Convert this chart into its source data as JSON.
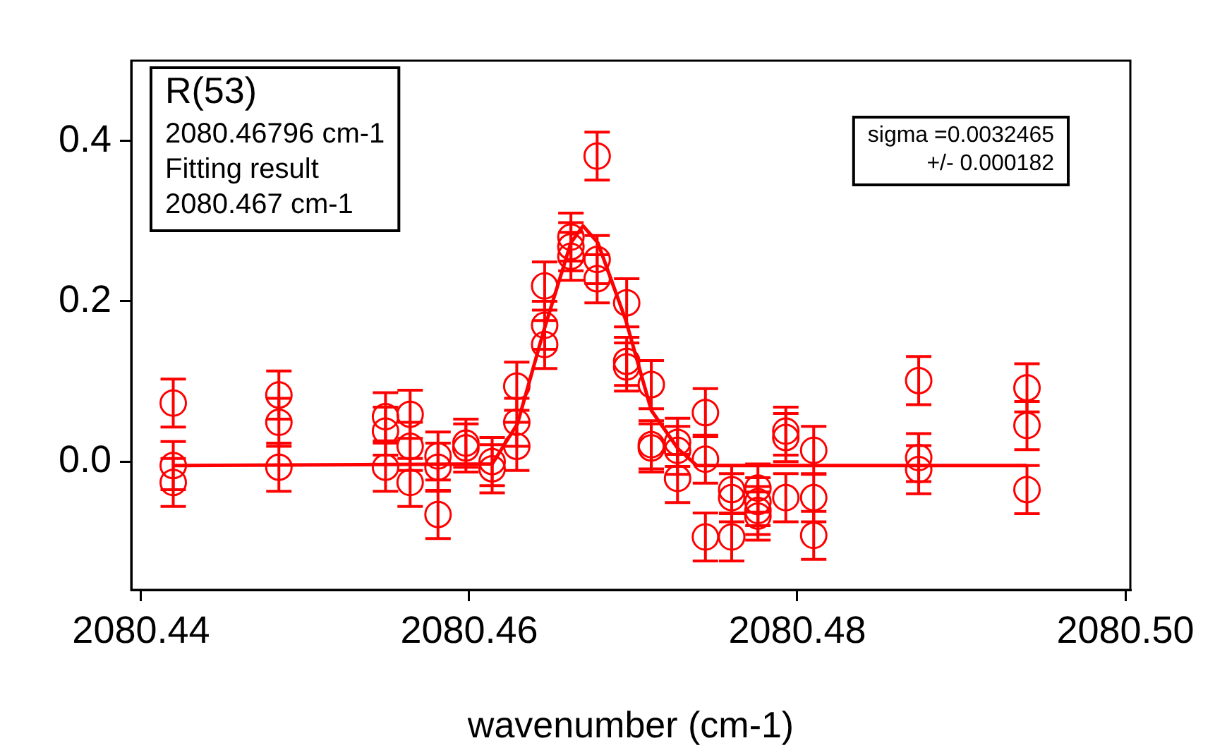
{
  "chart_data": {
    "type": "scatter",
    "xlabel": "wavenumber (cm-1)",
    "xlim": [
      2080.4394,
      2080.5003
    ],
    "xticks": [
      {
        "value": 2080.44,
        "label": "2080.44"
      },
      {
        "value": 2080.46,
        "label": "2080.46"
      },
      {
        "value": 2080.48,
        "label": "2080.48"
      },
      {
        "value": 2080.5,
        "label": "2080.50"
      }
    ],
    "ylim": [
      -0.16,
      0.5
    ],
    "yticks": [
      {
        "value": 0,
        "label": "0.0"
      },
      {
        "value": 0.2,
        "label": "0.2"
      },
      {
        "value": 0.4,
        "label": "0.4"
      }
    ],
    "grid": false,
    "legend": false,
    "marker": "circle",
    "annotations": [
      "R(53)\n2080.46796 cm-1\nFitting result\n2080.467 cm-1",
      "sigma =0.0032465\n+/- 0.000182"
    ],
    "series": [
      {
        "color": "#ff0000",
        "x": [
          2080.44196,
          2080.44196,
          2080.44196,
          2080.4484,
          2080.4484,
          2080.4484,
          2080.4549,
          2080.4549,
          2080.4549,
          2080.4564,
          2080.4564,
          2080.4564,
          2080.4581,
          2080.4581,
          2080.4581,
          2080.4598,
          2080.4598,
          2080.4614,
          2080.4614,
          2080.4629,
          2080.4629,
          2080.4629,
          2080.4646,
          2080.4646,
          2080.4646,
          2080.4662,
          2080.4662,
          2080.4662,
          2080.4678,
          2080.4678,
          2080.4678,
          2080.4696,
          2080.4696,
          2080.4696,
          2080.4711,
          2080.4711,
          2080.4711,
          2080.4727,
          2080.4727,
          2080.4727,
          2080.4744,
          2080.4744,
          2080.4744,
          2080.476,
          2080.476,
          2080.476,
          2080.4776,
          2080.4776,
          2080.4776,
          2080.4776,
          2080.4793,
          2080.4793,
          2080.4793,
          2080.481,
          2080.481,
          2080.481,
          2080.4874,
          2080.4874,
          2080.4874,
          2080.494,
          2080.494,
          2080.494
        ],
        "values": [
          0.073,
          -0.005,
          -0.026,
          0.083,
          0.049,
          -0.007,
          0.056,
          0.038,
          -0.007,
          0.059,
          0.019,
          -0.026,
          0.007,
          -0.007,
          -0.066,
          0.017,
          0.023,
          -0.009,
          0.0,
          0.094,
          0.049,
          0.019,
          0.219,
          0.17,
          0.146,
          0.28,
          0.268,
          0.256,
          0.381,
          0.252,
          0.228,
          0.198,
          0.125,
          0.118,
          0.096,
          0.021,
          0.017,
          0.024,
          0.014,
          -0.021,
          0.061,
          0.003,
          -0.094,
          -0.035,
          -0.045,
          -0.094,
          -0.033,
          -0.05,
          -0.061,
          -0.068,
          0.038,
          0.03,
          -0.045,
          0.014,
          -0.045,
          -0.092,
          0.101,
          0.005,
          -0.01,
          0.092,
          0.045,
          -0.035
        ],
        "errors": [
          0.03,
          0.03,
          0.03,
          0.03,
          0.03,
          0.03,
          0.03,
          0.03,
          0.03,
          0.03,
          0.03,
          0.03,
          0.03,
          0.03,
          0.03,
          0.03,
          0.03,
          0.03,
          0.03,
          0.03,
          0.03,
          0.03,
          0.03,
          0.03,
          0.03,
          0.03,
          0.03,
          0.03,
          0.03,
          0.03,
          0.03,
          0.03,
          0.03,
          0.03,
          0.03,
          0.03,
          0.03,
          0.03,
          0.03,
          0.03,
          0.03,
          0.03,
          0.03,
          0.03,
          0.03,
          0.03,
          0.03,
          0.03,
          0.03,
          0.03,
          0.03,
          0.03,
          0.03,
          0.03,
          0.03,
          0.03,
          0.03,
          0.03,
          0.03,
          0.03,
          0.03,
          0.03
        ]
      },
      {
        "type": "line",
        "color": "#ff0000",
        "marker": "none",
        "x": [
          2080.442,
          2080.4614,
          2080.46294,
          2080.46457,
          2080.4662,
          2080.46694,
          2080.46784,
          2080.46955,
          2080.4711,
          2080.47273,
          2080.47388,
          2080.494
        ],
        "values": [
          -0.005,
          -0.003,
          0.047,
          0.165,
          0.273,
          0.294,
          0.273,
          0.176,
          0.064,
          0.016,
          -0.005,
          -0.005
        ]
      }
    ]
  }
}
